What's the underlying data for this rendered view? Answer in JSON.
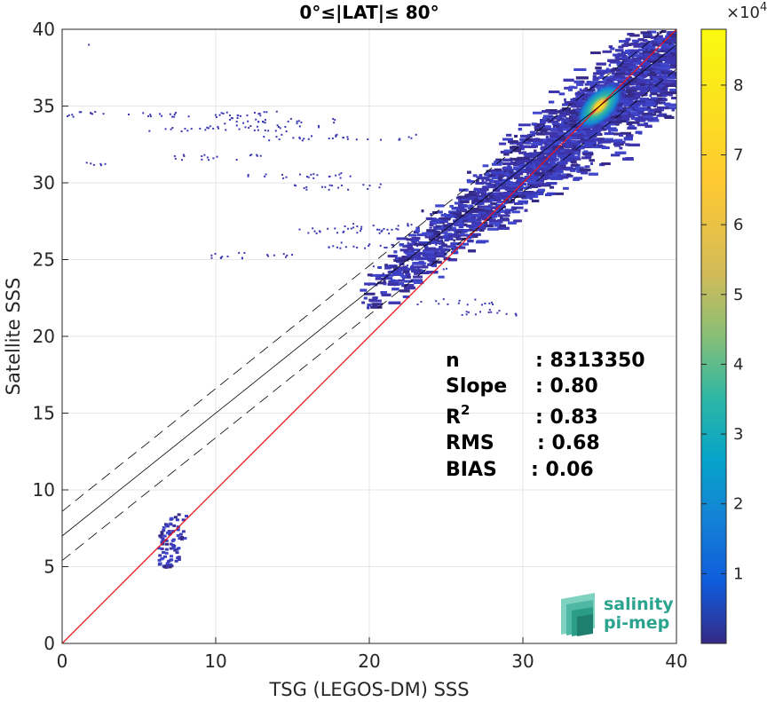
{
  "chart_data": {
    "type": "heatmap",
    "title": "0°≤|LAT|≤ 80°",
    "xlabel": "TSG (LEGOS-DM) SSS",
    "ylabel": "Satellite SSS",
    "xlim": [
      0,
      40
    ],
    "ylim": [
      0,
      40
    ],
    "xticks": [
      "0",
      "10",
      "20",
      "30",
      "40"
    ],
    "yticks": [
      "0",
      "5",
      "10",
      "15",
      "20",
      "25",
      "30",
      "35",
      "40"
    ],
    "grid": true,
    "colorbar": {
      "colormap": "parula",
      "range": [
        0,
        88000
      ],
      "multiplier": "×10",
      "exponent": "4",
      "ticks": [
        "1",
        "2",
        "3",
        "4",
        "5",
        "6",
        "7",
        "8"
      ],
      "tick_values": [
        10000,
        20000,
        30000,
        40000,
        50000,
        60000,
        70000,
        80000
      ]
    },
    "lines": [
      {
        "name": "one-to-one",
        "color": "#e8151c",
        "style": "solid",
        "x": [
          0,
          40
        ],
        "y": [
          0,
          40
        ]
      },
      {
        "name": "regression",
        "color": "#000000",
        "style": "solid",
        "x": [
          0,
          40
        ],
        "y": [
          7.0,
          39.0
        ]
      },
      {
        "name": "regression-upper",
        "color": "#000000",
        "style": "dashed",
        "x": [
          0,
          40
        ],
        "y": [
          8.6,
          40.6
        ]
      },
      {
        "name": "regression-lower",
        "color": "#000000",
        "style": "dashed",
        "x": [
          0,
          40
        ],
        "y": [
          5.4,
          37.4
        ]
      }
    ],
    "density_regions": [
      {
        "label": "core",
        "x": [
          33.5,
          36.5
        ],
        "y": [
          33.5,
          36.5
        ],
        "level": "high"
      },
      {
        "label": "main-cloud",
        "x": [
          19,
          40
        ],
        "y": [
          22,
          39.5
        ],
        "level": "low"
      },
      {
        "label": "low-salinity-cluster",
        "x": [
          6,
          8
        ],
        "y": [
          4.6,
          8.5
        ],
        "level": "low"
      }
    ],
    "stats": {
      "labels": [
        "n",
        "Slope",
        "R",
        "RMS",
        "BIAS"
      ],
      "r_sup": "2",
      "values": [
        ": 8313350",
        ": 0.80",
        ": 0.83",
        ": 0.68",
        ": 0.06"
      ]
    }
  },
  "logo": {
    "line1": "salinity",
    "line2": "pi-mep"
  }
}
